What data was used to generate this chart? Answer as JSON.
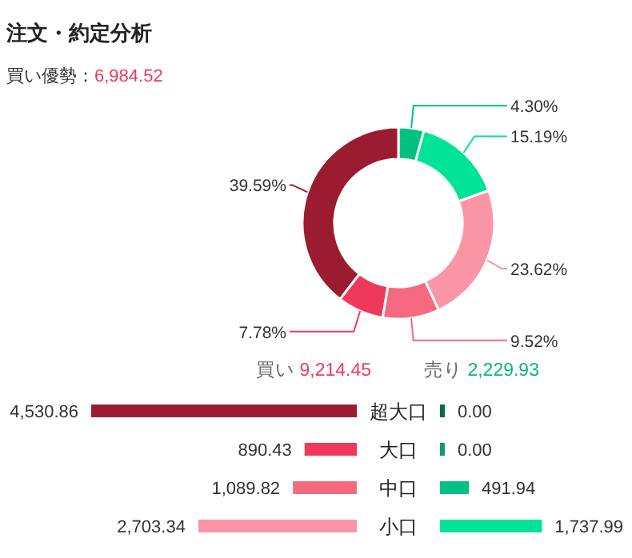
{
  "chart_data": [
    {
      "type": "donut",
      "title": "注文・約定分析",
      "subtitle": "買い優勢：6,984.52",
      "categories": [
        null,
        null,
        null,
        null,
        null,
        null
      ],
      "values": [
        4.3,
        15.19,
        23.62,
        9.52,
        7.78,
        39.59
      ],
      "colors": [
        "#00c184",
        "#00e396",
        "#fa95a5",
        "#f66a80",
        "#f0395a",
        "#9b1b30"
      ],
      "value_labels": [
        "4.30%",
        "15.19%",
        "23.62%",
        "9.52%",
        "7.78%",
        "39.59%"
      ]
    },
    {
      "type": "bar",
      "orientation": "horizontal",
      "categories": [
        "超大口",
        "大口",
        "中口",
        "小口"
      ],
      "series": [
        {
          "name": "買い",
          "colors": [
            "#9b1b30",
            "#f0395a",
            "#f66a80",
            "#fa95a5"
          ],
          "values": [
            4530.86,
            890.43,
            1089.82,
            2703.34
          ],
          "value_labels": [
            "4,530.86",
            "890.43",
            "1,089.82",
            "2,703.34"
          ]
        }
      ],
      "annotations": [
        "9,214.45"
      ]
    },
    {
      "type": "bar",
      "orientation": "horizontal",
      "categories": [
        null,
        null,
        null,
        null
      ],
      "series": [
        {
          "name": "売り",
          "colors": [
            "#0b6b45",
            "#0a9e6a",
            "#00c184",
            "#00e396"
          ],
          "values": [
            0.0,
            0.0,
            491.94,
            1737.99
          ],
          "value_labels": [
            "0.00",
            "0.00",
            "491.94",
            "1,737.99"
          ]
        }
      ],
      "annotations": [
        "2,229.93"
      ]
    }
  ]
}
